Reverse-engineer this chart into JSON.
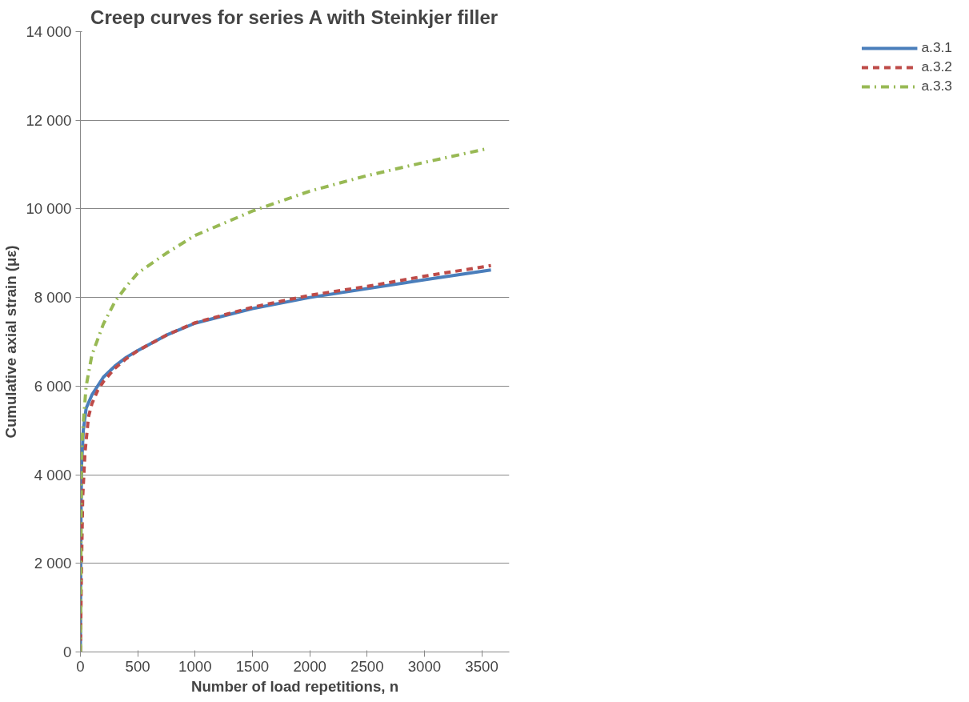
{
  "chart_data": {
    "type": "line",
    "title": "Creep curves for series A with Steinkjer filler",
    "xlabel": "Number of load repetitions, n",
    "ylabel": "Cumulative axial strain (με)",
    "xlim": [
      0,
      3740
    ],
    "xticks": [
      0,
      500,
      1000,
      1500,
      2000,
      2500,
      3000,
      3500
    ],
    "ylim": [
      0,
      14000
    ],
    "yticks": [
      {
        "value": 0,
        "label": "0"
      },
      {
        "value": 2000,
        "label": "2 000"
      },
      {
        "value": 4000,
        "label": "4 000"
      },
      {
        "value": 6000,
        "label": "6 000"
      },
      {
        "value": 8000,
        "label": "8 000"
      },
      {
        "value": 10000,
        "label": "10 000"
      },
      {
        "value": 12000,
        "label": "12 000"
      },
      {
        "value": 14000,
        "label": "14 000"
      }
    ],
    "grid": "y",
    "legend": "right",
    "marker": "none",
    "series": [
      {
        "name": "a.3.1",
        "color": "#4a7ebb",
        "line_style": "solid",
        "x": [
          0,
          5,
          10,
          25,
          50,
          100,
          200,
          300,
          400,
          500,
          750,
          1000,
          1500,
          2000,
          2500,
          3000,
          3580
        ],
        "values": [
          0,
          3000,
          4200,
          5000,
          5500,
          5800,
          6200,
          6450,
          6650,
          6800,
          7150,
          7420,
          7750,
          8000,
          8200,
          8400,
          8620
        ]
      },
      {
        "name": "a.3.2",
        "color": "#be4b48",
        "line_style": "dashed",
        "x": [
          0,
          10,
          20,
          40,
          70,
          100,
          150,
          200,
          300,
          400,
          500,
          750,
          1000,
          1500,
          2000,
          2500,
          3000,
          3580
        ],
        "values": [
          0,
          2000,
          3500,
          4500,
          5300,
          5600,
          5900,
          6100,
          6400,
          6620,
          6800,
          7150,
          7430,
          7780,
          8050,
          8250,
          8480,
          8720
        ]
      },
      {
        "name": "a.3.3",
        "color": "#98b954",
        "line_style": "dashdot",
        "x": [
          0,
          5,
          10,
          20,
          50,
          100,
          200,
          300,
          400,
          500,
          750,
          1000,
          1500,
          2000,
          2500,
          3000,
          3550
        ],
        "values": [
          0,
          2500,
          4500,
          5000,
          6000,
          6700,
          7400,
          7900,
          8250,
          8550,
          9000,
          9400,
          9950,
          10400,
          10750,
          11050,
          11360
        ]
      }
    ]
  }
}
